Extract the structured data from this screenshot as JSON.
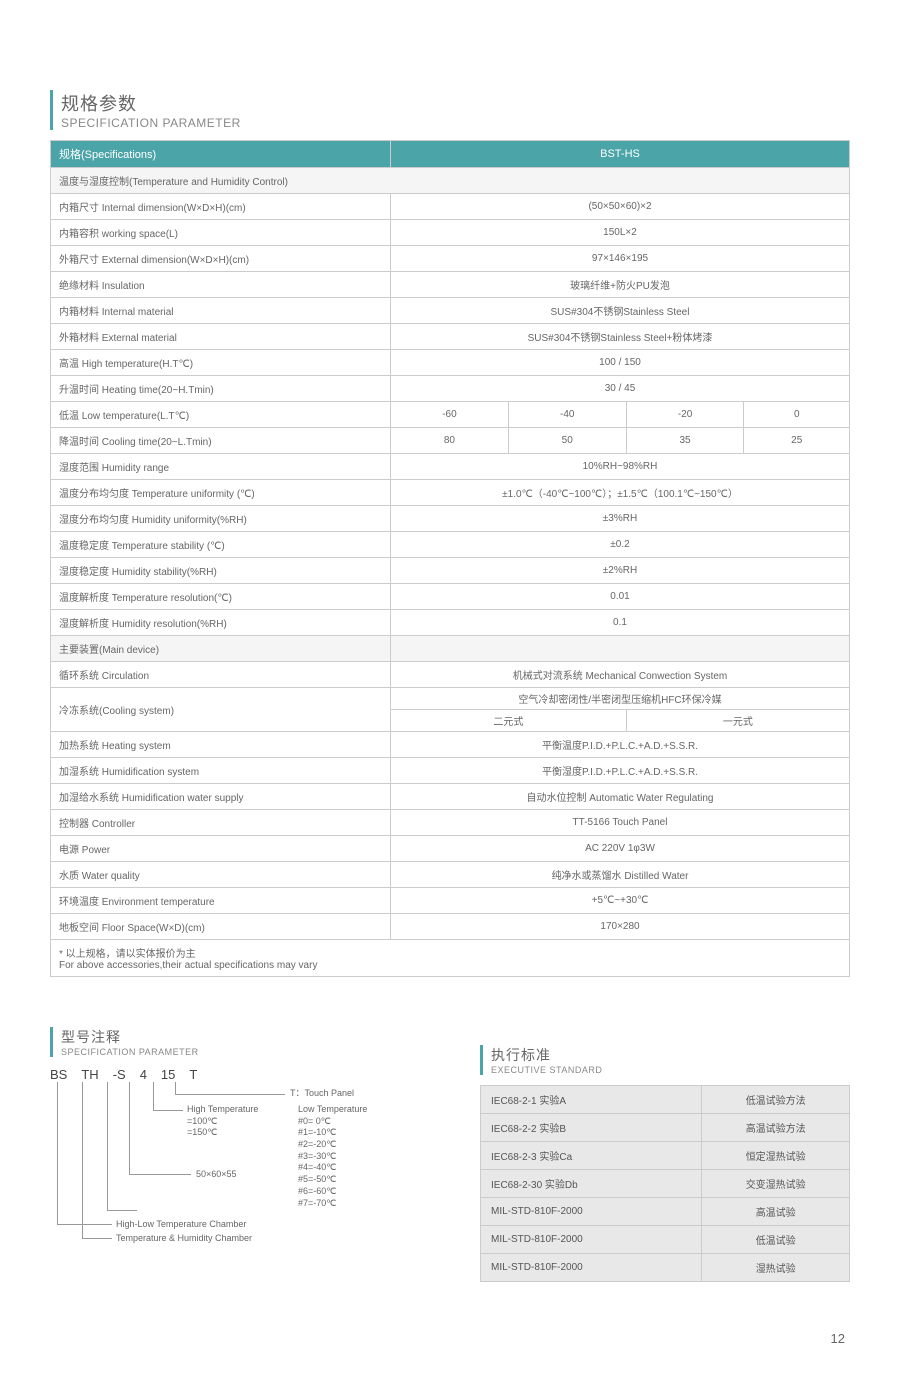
{
  "section_title": {
    "cn": "规格参数",
    "en": "SPECIFICATION PARAMETER"
  },
  "table": {
    "header_spec": "规格(Specifications)",
    "header_model": "BST-HS",
    "group_temp_humidity": "温度与湿度控制(Temperature and Humidity Control)",
    "rows": [
      {
        "label": "内箱尺寸 Internal dimension(W×D×H)(cm)",
        "val": "(50×50×60)×2"
      },
      {
        "label": "内箱容积 working space(L)",
        "val": "150L×2"
      },
      {
        "label": "外箱尺寸 External dimension(W×D×H)(cm)",
        "val": "97×146×195"
      },
      {
        "label": "绝缘材料 Insulation",
        "val": "玻璃纤维+防火PU发泡"
      },
      {
        "label": "内箱材料 Internal material",
        "val": "SUS#304不锈钢Stainless Steel"
      },
      {
        "label": "外箱材料 External material",
        "val": "SUS#304不锈钢Stainless Steel+粉体烤漆"
      },
      {
        "label": "高温 High temperature(H.T℃)",
        "val": "100 / 150"
      },
      {
        "label": "升温时间 Heating time(20~H.Tmin)",
        "val": "30 / 45"
      }
    ],
    "low_temp_label": "低温 Low temperature(L.T℃)",
    "low_temp_vals": [
      "-60",
      "-40",
      "-20",
      "0"
    ],
    "cooling_label": "降温时间 Cooling time(20~L.Tmin)",
    "cooling_vals": [
      "80",
      "50",
      "35",
      "25"
    ],
    "rows2": [
      {
        "label": "湿度范围 Humidity range",
        "val": "10%RH~98%RH"
      },
      {
        "label": "温度分布均匀度 Temperature uniformity (℃)",
        "val": "±1.0℃（-40℃~100℃）；±1.5℃（100.1℃~150℃）"
      },
      {
        "label": "湿度分布均匀度 Humidity uniformity(%RH)",
        "val": "±3%RH"
      },
      {
        "label": "温度稳定度 Temperature stability (℃)",
        "val": "±0.2"
      },
      {
        "label": "湿度稳定度 Humidity stability(%RH)",
        "val": "±2%RH"
      },
      {
        "label": "温度解析度 Temperature resolution(℃)",
        "val": "0.01"
      },
      {
        "label": "湿度解析度 Humidity resolution(%RH)",
        "val": "0.1"
      }
    ],
    "group_main_device": "主要装置(Main device)",
    "circulation_label": "循环系统 Circulation",
    "circulation_val": "机械式对流系统 Mechanical Conwection System",
    "cooling_sys_label": "冷冻系统(Cooling system)",
    "cooling_sys_val1": "空气冷却密闭性/半密闭型压缩机HFC环保冷媒",
    "cooling_sys_val2a": "二元式",
    "cooling_sys_val2b": "一元式",
    "rows3": [
      {
        "label": "加热系统 Heating system",
        "val": "平衡温度P.I.D.+P.L.C.+A.D.+S.S.R."
      },
      {
        "label": "加湿系统 Humidification system",
        "val": "平衡湿度P.I.D.+P.L.C.+A.D.+S.S.R."
      },
      {
        "label": "加湿给水系统 Humidification water supply",
        "val": "自动水位控制 Automatic Water Regulating"
      },
      {
        "label": "控制器 Controller",
        "val": "TT-5166 Touch Panel"
      },
      {
        "label": "电源 Power",
        "val": "AC 220V 1φ3W"
      },
      {
        "label": "水质 Water quality",
        "val": "纯净水或蒸馏水 Distilled Water"
      },
      {
        "label": "环境温度 Environment temperature",
        "val": "+5℃~+30℃"
      },
      {
        "label": "地板空间 Floor Space(W×D)(cm)",
        "val": "170×280"
      }
    ],
    "note_cn": "* 以上规格，请以实体报价为主",
    "note_en": "  For above accessories,their actual specifications may vary"
  },
  "model_title": {
    "cn": "型号注释",
    "en": "SPECIFICATION PARAMETER"
  },
  "model_code": {
    "p1": "BS",
    "p2": "TH",
    "p3": "-S",
    "p4": "4",
    "p5": "15",
    "p6": "T"
  },
  "model_labels": {
    "touch": "T：Touch Panel",
    "hightemp1": "High Temperature",
    "hightemp2": "=100℃",
    "hightemp3": "=150℃",
    "lowtemp_title": "Low Temperature",
    "lt0": "#0=    0℃",
    "lt1": "#1=-10℃",
    "lt2": "#2=-20℃",
    "lt3": "#3=-30℃",
    "lt4": "#4=-40℃",
    "lt5": "#5=-50℃",
    "lt6": "#6=-60℃",
    "lt7": "#7=-70℃",
    "dim": "50×60×55",
    "hl": "High-Low Temperature Chamber",
    "th": "Temperature & Humidity Chamber"
  },
  "std_title": {
    "cn": "执行标准",
    "en": "EXECUTIVE STANDARD"
  },
  "standards": [
    {
      "k": "IEC68-2-1 实验A",
      "v": "低温试验方法"
    },
    {
      "k": "IEC68-2-2 实验B",
      "v": "高温试验方法"
    },
    {
      "k": "IEC68-2-3 实验Ca",
      "v": "恒定湿热试验"
    },
    {
      "k": "IEC68-2-30 实验Db",
      "v": "交变湿热试验"
    },
    {
      "k": "MIL-STD-810F-2000",
      "v": "高温试验"
    },
    {
      "k": "MIL-STD-810F-2000",
      "v": "低温试验"
    },
    {
      "k": "MIL-STD-810F-2000",
      "v": "湿热试验"
    }
  ],
  "page_number": "12",
  "colors": {
    "accent": "#4aa4a8",
    "border": "#cccccc",
    "text": "#666666",
    "bg_gray": "#e8e8e8"
  }
}
